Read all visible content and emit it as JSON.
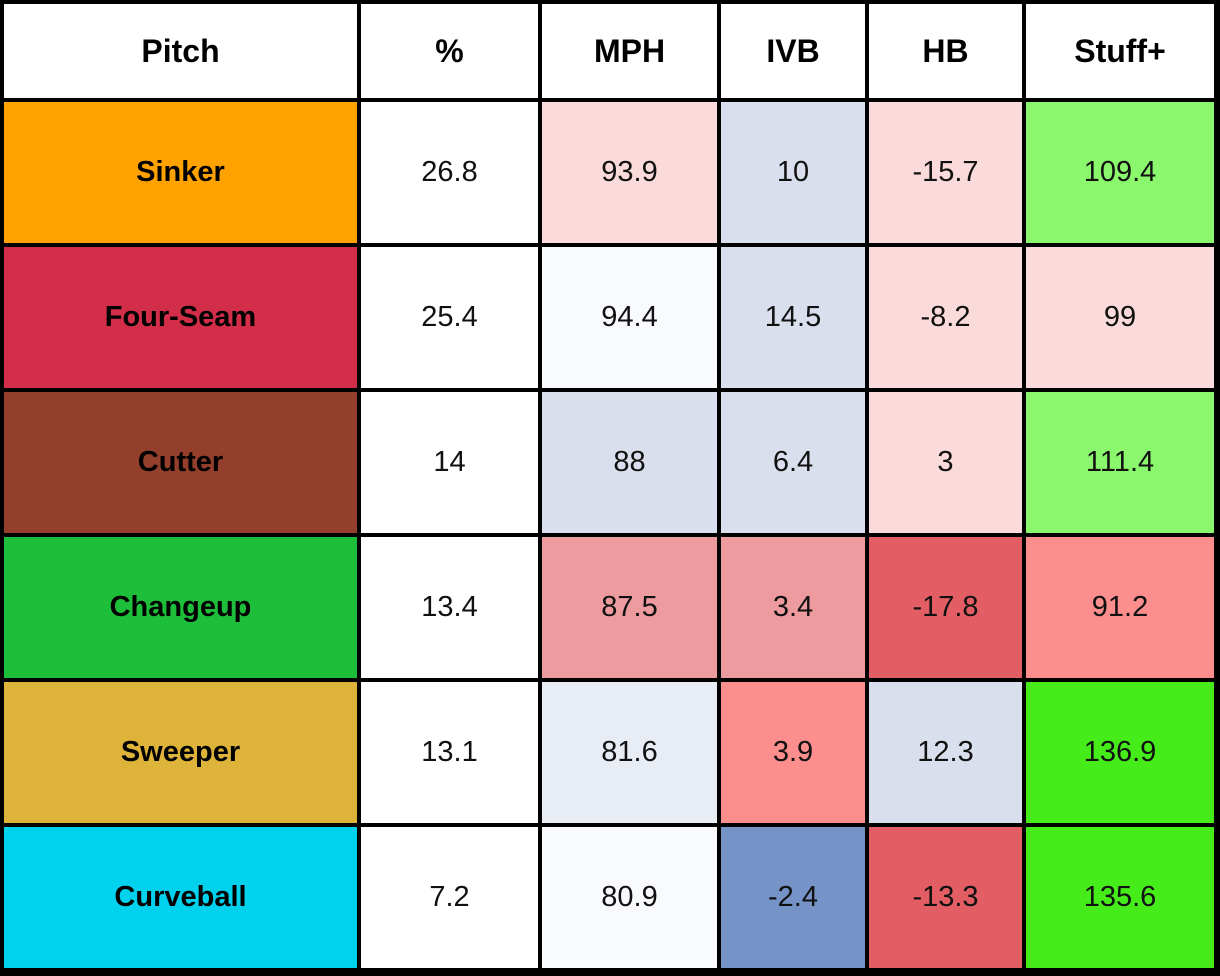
{
  "chart_data": {
    "type": "table",
    "columns": [
      "Pitch",
      "%",
      "MPH",
      "IVB",
      "HB",
      "Stuff+"
    ],
    "rows": [
      {
        "pitch": "Sinker",
        "pct": "26.8",
        "mph": "93.9",
        "ivb": "10",
        "hb": "-15.7",
        "stuff": "109.4",
        "colors": {
          "pitch": "#FFA200",
          "pct": "#FFFFFF",
          "mph": "#FADADA",
          "ivb": "#D9DFEC",
          "hb": "#FADADA",
          "stuff": "#8AF76C"
        }
      },
      {
        "pitch": "Four-Seam",
        "pct": "25.4",
        "mph": "94.4",
        "ivb": "14.5",
        "hb": "-8.2",
        "stuff": "99",
        "colors": {
          "pitch": "#D22D49",
          "pct": "#FFFFFF",
          "mph": "#F9FAFD",
          "ivb": "#D9DFEC",
          "hb": "#FADADA",
          "stuff": "#FADADA"
        }
      },
      {
        "pitch": "Cutter",
        "pct": "14",
        "mph": "88",
        "ivb": "6.4",
        "hb": "3",
        "stuff": "111.4",
        "colors": {
          "pitch": "#933F2C",
          "pct": "#FFFFFF",
          "mph": "#D9DFEC",
          "ivb": "#D9DFEC",
          "hb": "#FADADA",
          "stuff": "#8AF76C"
        }
      },
      {
        "pitch": "Changeup",
        "pct": "13.4",
        "mph": "87.5",
        "ivb": "3.4",
        "hb": "-17.8",
        "stuff": "91.2",
        "colors": {
          "pitch": "#1DBE3A",
          "pct": "#FFFFFF",
          "mph": "#ED9B9F",
          "ivb": "#ED9B9F",
          "hb": "#E35D64",
          "stuff": "#FC8E8E"
        }
      },
      {
        "pitch": "Sweeper",
        "pct": "13.1",
        "mph": "81.6",
        "ivb": "3.9",
        "hb": "12.3",
        "stuff": "136.9",
        "colors": {
          "pitch": "#DDB33A",
          "pct": "#FFFFFF",
          "mph": "#E8ECF5",
          "ivb": "#FC8E8E",
          "hb": "#D9DFEC",
          "stuff": "#45EC1A"
        }
      },
      {
        "pitch": "Curveball",
        "pct": "7.2",
        "mph": "80.9",
        "ivb": "-2.4",
        "hb": "-13.3",
        "stuff": "135.6",
        "colors": {
          "pitch": "#00D1ED",
          "pct": "#FFFFFF",
          "mph": "#F9FAFD",
          "ivb": "#7593C7",
          "hb": "#E35D64",
          "stuff": "#45EC1A"
        }
      }
    ]
  }
}
